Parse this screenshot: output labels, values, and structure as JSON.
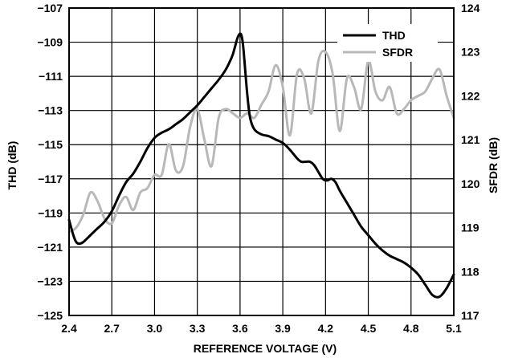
{
  "chart_data": {
    "type": "line",
    "title": "",
    "xlabel": "REFERENCE VOLTAGE (V)",
    "ylabel_left": "THD (dB)",
    "ylabel_right": "SFDR (dB)",
    "xlim": [
      2.4,
      5.1
    ],
    "ylim_left": [
      -125,
      -107
    ],
    "ylim_right": [
      117,
      124
    ],
    "x_ticks": [
      "2.4",
      "2.7",
      "3.0",
      "3.3",
      "3.6",
      "3.9",
      "4.2",
      "4.5",
      "4.8",
      "5.1"
    ],
    "y_left_ticks": [
      "−107",
      "−109",
      "−111",
      "−113",
      "−115",
      "−117",
      "−119",
      "−121",
      "−123",
      "−125"
    ],
    "y_right_ticks": [
      "124",
      "123",
      "122",
      "121",
      "120",
      "119",
      "118",
      "117"
    ],
    "grid": true,
    "legend_position": "top-right",
    "series": [
      {
        "name": "THD",
        "axis": "left",
        "color": "#000000",
        "x": [
          2.4,
          2.43,
          2.45,
          2.47,
          2.5,
          2.55,
          2.6,
          2.65,
          2.7,
          2.75,
          2.8,
          2.85,
          2.9,
          2.95,
          3.0,
          3.05,
          3.1,
          3.15,
          3.2,
          3.25,
          3.3,
          3.35,
          3.4,
          3.45,
          3.5,
          3.53,
          3.55,
          3.57,
          3.58,
          3.59,
          3.6,
          3.61,
          3.62,
          3.63,
          3.65,
          3.67,
          3.7,
          3.75,
          3.8,
          3.85,
          3.9,
          3.95,
          4.0,
          4.03,
          4.06,
          4.09,
          4.12,
          4.15,
          4.18,
          4.21,
          4.24,
          4.27,
          4.3,
          4.35,
          4.4,
          4.45,
          4.5,
          4.55,
          4.6,
          4.65,
          4.7,
          4.75,
          4.8,
          4.85,
          4.9,
          4.95,
          5.0,
          5.05,
          5.1
        ],
        "values": [
          -119.4,
          -120.3,
          -120.7,
          -120.8,
          -120.7,
          -120.3,
          -119.9,
          -119.5,
          -118.9,
          -118.0,
          -117.2,
          -116.7,
          -116.0,
          -115.2,
          -114.6,
          -114.3,
          -114.1,
          -113.8,
          -113.5,
          -113.1,
          -112.7,
          -112.2,
          -111.7,
          -111.2,
          -110.6,
          -110.1,
          -109.7,
          -109.1,
          -108.8,
          -108.6,
          -108.5,
          -108.6,
          -109.1,
          -110.0,
          -112.0,
          -113.4,
          -114.1,
          -114.4,
          -114.5,
          -114.7,
          -114.9,
          -115.3,
          -115.8,
          -116.0,
          -116.0,
          -116.0,
          -116.2,
          -116.6,
          -117.0,
          -117.1,
          -117.0,
          -117.2,
          -117.7,
          -118.4,
          -119.1,
          -119.8,
          -120.3,
          -120.8,
          -121.2,
          -121.5,
          -121.7,
          -121.9,
          -122.2,
          -122.6,
          -123.2,
          -123.8,
          -123.9,
          -123.4,
          -122.6
        ]
      },
      {
        "name": "SFDR",
        "axis": "right",
        "color": "#b8b8b8",
        "x": [
          2.4,
          2.45,
          2.5,
          2.55,
          2.6,
          2.65,
          2.7,
          2.75,
          2.8,
          2.85,
          2.9,
          2.95,
          3.0,
          3.05,
          3.1,
          3.15,
          3.2,
          3.25,
          3.3,
          3.35,
          3.4,
          3.45,
          3.5,
          3.55,
          3.6,
          3.65,
          3.7,
          3.75,
          3.8,
          3.85,
          3.9,
          3.95,
          4.0,
          4.05,
          4.1,
          4.15,
          4.2,
          4.25,
          4.3,
          4.35,
          4.4,
          4.45,
          4.5,
          4.55,
          4.6,
          4.65,
          4.7,
          4.75,
          4.8,
          4.85,
          4.9,
          4.95,
          5.0,
          5.05,
          5.1
        ],
        "values": [
          118.9,
          119.0,
          119.3,
          119.8,
          119.6,
          119.2,
          119.1,
          119.5,
          119.7,
          119.4,
          119.8,
          119.9,
          120.2,
          120.2,
          120.9,
          120.3,
          120.4,
          121.3,
          121.7,
          121.0,
          120.4,
          121.5,
          121.7,
          121.6,
          121.5,
          121.6,
          121.5,
          121.8,
          122.1,
          122.7,
          122.2,
          121.1,
          122.5,
          122.4,
          121.6,
          122.8,
          123.0,
          122.5,
          121.2,
          122.4,
          122.2,
          121.7,
          122.8,
          122.1,
          121.9,
          122.2,
          121.6,
          121.7,
          121.9,
          122.0,
          122.1,
          122.4,
          122.6,
          122.0,
          121.5
        ]
      }
    ]
  }
}
